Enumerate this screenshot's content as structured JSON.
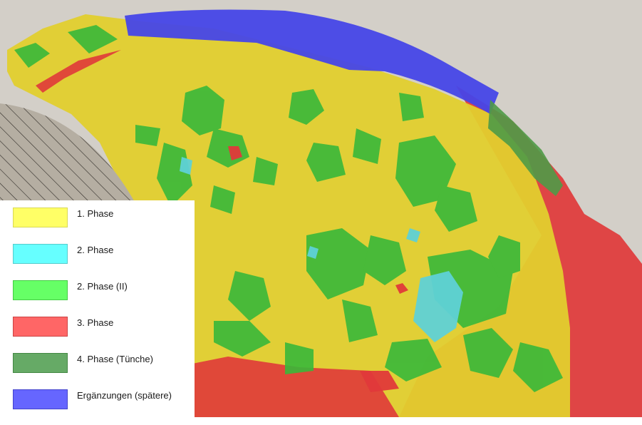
{
  "legend": {
    "items": [
      {
        "label": "1. Phase",
        "color": "#ffff66",
        "border": "#d9d955"
      },
      {
        "label": "2. Phase",
        "color": "#66ffff",
        "border": "#55cccc"
      },
      {
        "label": "2. Phase (II)",
        "color": "#66ff66",
        "border": "#44cc44"
      },
      {
        "label": "3. Phase",
        "color": "#ff6666",
        "border": "#cc4444"
      },
      {
        "label": "4. Phase (Tünche)",
        "color": "#66aa66",
        "border": "#448844"
      },
      {
        "label": "Ergänzungen (spätere)",
        "color": "#6666ff",
        "border": "#4444cc"
      }
    ]
  },
  "map": {
    "colors": {
      "phase1": "#e2cf2e",
      "phase2": "#5fd1d6",
      "phase2b": "#39b83a",
      "phase3": "#e0393a",
      "phase4": "#4f9a47",
      "additions": "#4646e8",
      "stone": "#b8b0a0",
      "hatch": "#8a8276",
      "background_stone": "#c9c5bd"
    }
  }
}
